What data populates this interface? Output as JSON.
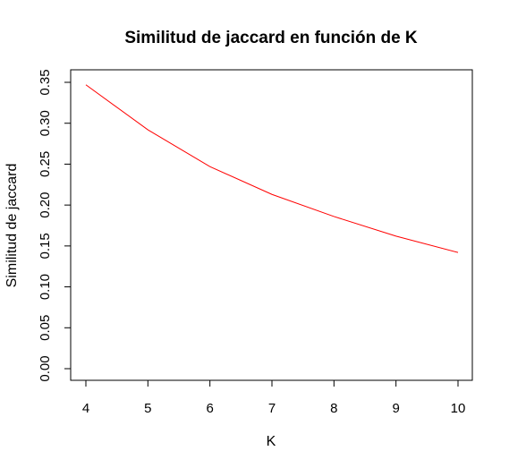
{
  "chart_data": {
    "type": "line",
    "title": "Similitud de jaccard en función de K",
    "xlabel": "K",
    "ylabel": "Similitud de jaccard",
    "x": [
      4,
      5,
      6,
      7,
      8,
      9,
      10
    ],
    "series": [
      {
        "values": [
          0.347,
          0.292,
          0.247,
          0.213,
          0.186,
          0.162,
          0.142
        ],
        "color": "#ff0000"
      }
    ],
    "xticks": [
      4,
      5,
      6,
      7,
      8,
      9,
      10
    ],
    "yticks": [
      "0.00",
      "0.05",
      "0.10",
      "0.15",
      "0.20",
      "0.25",
      "0.30",
      "0.35"
    ],
    "xlim": [
      4,
      10
    ],
    "ylim": [
      0,
      0.35
    ],
    "grid": false,
    "legend": "none"
  }
}
